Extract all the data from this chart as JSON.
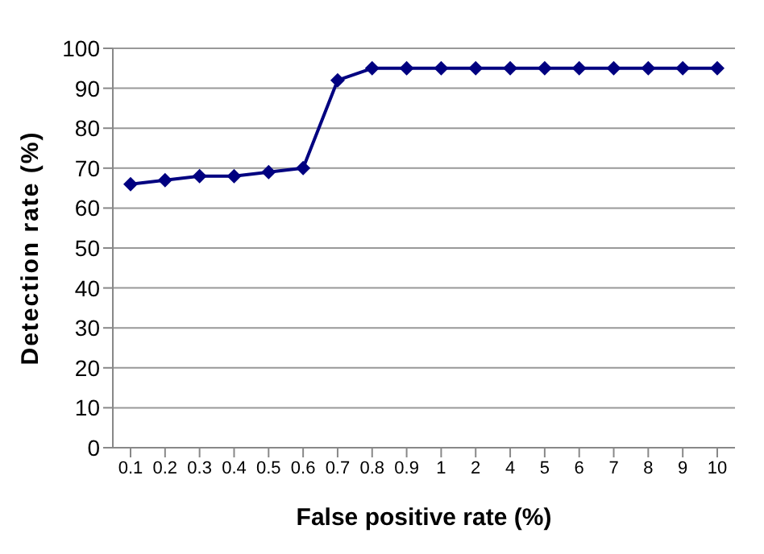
{
  "chart_data": {
    "type": "line",
    "xlabel": "False positive rate (%)",
    "ylabel": "Detection rate (%)",
    "categories": [
      "0.1",
      "0.2",
      "0.3",
      "0.4",
      "0.5",
      "0.6",
      "0.7",
      "0.8",
      "0.9",
      "1",
      "2",
      "4",
      "5",
      "6",
      "7",
      "8",
      "9",
      "10"
    ],
    "series": [
      {
        "color": "#000080",
        "values": [
          66,
          67,
          68,
          68,
          69,
          70,
          92,
          95,
          95,
          95,
          95,
          95,
          95,
          95,
          95,
          95,
          95,
          95
        ]
      }
    ],
    "ylim": [
      0,
      100
    ],
    "yticks": [
      0,
      10,
      20,
      30,
      40,
      50,
      60,
      70,
      80,
      90,
      100
    ],
    "grid": "y",
    "marker": "diamond",
    "line_style": "solid"
  }
}
